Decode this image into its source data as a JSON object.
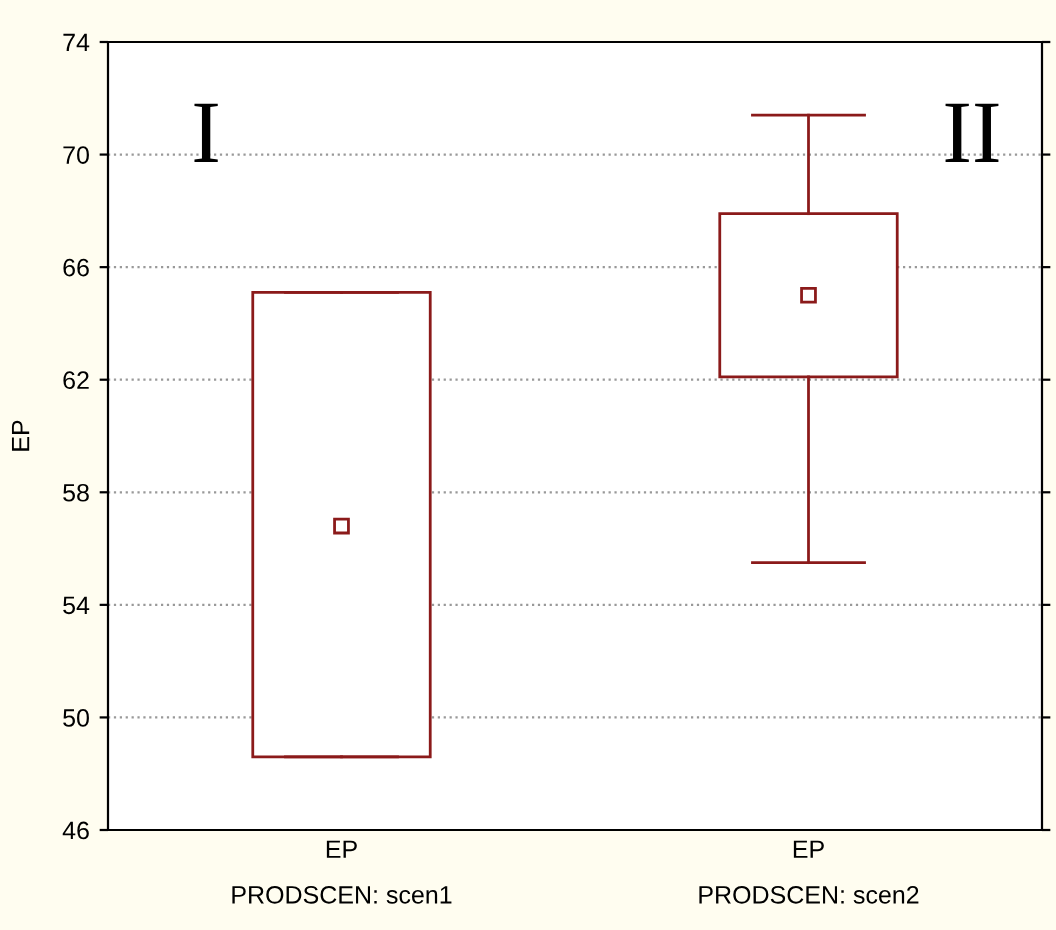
{
  "chart_data": {
    "type": "box",
    "categories": [
      "EP",
      "EP"
    ],
    "ylabel": "EP",
    "color": "#8b1a1a",
    "grid": "y",
    "ylim": [
      46,
      74
    ],
    "yticks": [
      46,
      50,
      54,
      58,
      62,
      66,
      70,
      74
    ],
    "annotations": [
      "I",
      "II",
      "PRODSCEN: scen1",
      "PRODSCEN: scen2"
    ],
    "boxes": [
      {
        "low": 48.6,
        "q1": 48.6,
        "median": 56.8,
        "q3": 65.1,
        "high": 65.1
      },
      {
        "low": 55.5,
        "q1": 62.1,
        "median": 65.0,
        "q3": 67.9,
        "high": 71.4
      }
    ]
  }
}
